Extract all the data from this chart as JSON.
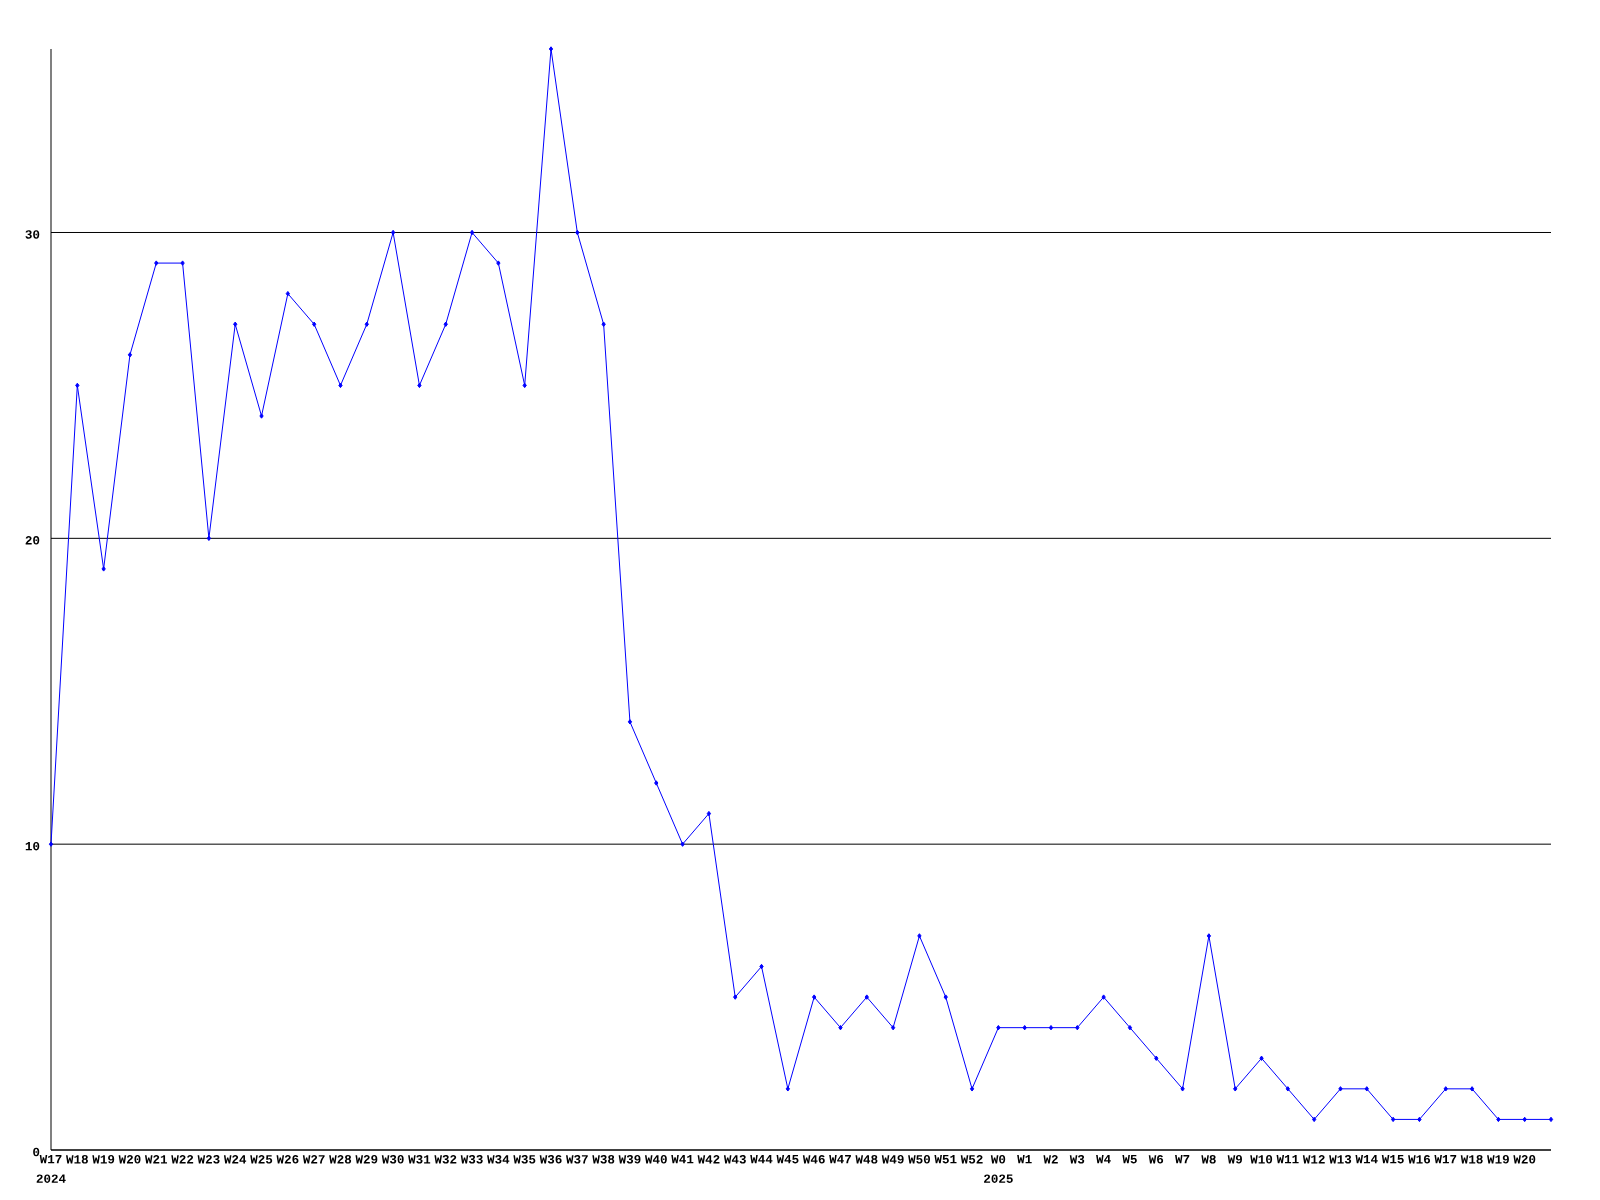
{
  "chart_data": {
    "type": "line",
    "categories": [
      "W17",
      "W18",
      "W19",
      "W20",
      "W21",
      "W22",
      "W23",
      "W24",
      "W25",
      "W26",
      "W27",
      "W28",
      "W29",
      "W30",
      "W31",
      "W32",
      "W33",
      "W34",
      "W35",
      "W36",
      "W37",
      "W38",
      "W39",
      "W40",
      "W41",
      "W42",
      "W43",
      "W44",
      "W45",
      "W46",
      "W47",
      "W48",
      "W49",
      "W50",
      "W51",
      "W52",
      "W0",
      "W1",
      "W2",
      "W3",
      "W4",
      "W5",
      "W6",
      "W7",
      "W8",
      "W9",
      "W10",
      "W11",
      "W12",
      "W13",
      "W14",
      "W15",
      "W16",
      "W17",
      "W18",
      "W19",
      "W20",
      null
    ],
    "values": [
      10,
      25,
      19,
      26,
      29,
      29,
      20,
      27,
      24,
      28,
      27,
      25,
      27,
      30,
      25,
      27,
      30,
      29,
      25,
      36,
      30,
      27,
      14,
      12,
      10,
      11,
      5,
      6,
      2,
      5,
      4,
      5,
      4,
      7,
      5,
      2,
      4,
      4,
      4,
      4,
      5,
      4,
      3,
      2,
      7,
      2,
      3,
      2,
      1,
      2,
      2,
      1,
      1,
      2,
      2,
      1,
      1,
      1
    ],
    "color": "#0000ff",
    "marker": "diamond",
    "line_style": "solid",
    "ylim": [
      0,
      36
    ],
    "yticks": [
      0,
      10,
      20,
      30
    ],
    "grid": "y",
    "annotations": [
      "2024",
      "2025"
    ]
  }
}
